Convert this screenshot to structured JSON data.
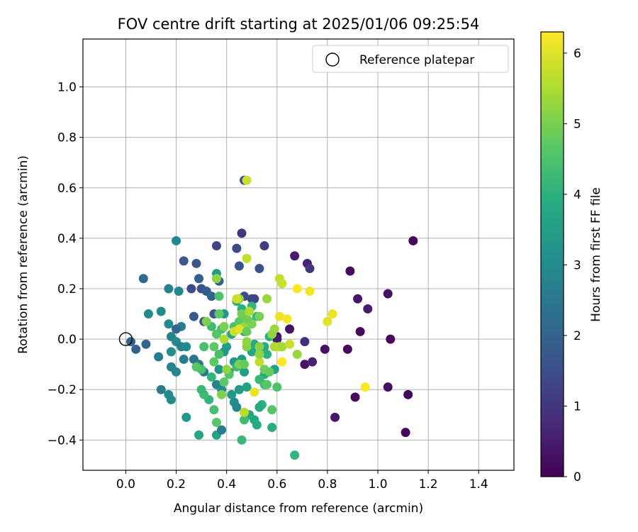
{
  "chart_data": {
    "type": "scatter",
    "title": "FOV centre drift starting at 2025/01/06 09:25:54",
    "xlabel": "Angular distance from reference (arcmin)",
    "ylabel": "Rotation from reference (arcmin)",
    "xlim": [
      -0.17,
      1.54
    ],
    "ylim": [
      -0.52,
      1.19
    ],
    "xticks": [
      0.0,
      0.2,
      0.4,
      0.6,
      0.8,
      1.0,
      1.2,
      1.4
    ],
    "xtick_labels": [
      "0.0",
      "0.2",
      "0.4",
      "0.6",
      "0.8",
      "1.0",
      "1.2",
      "1.4"
    ],
    "yticks": [
      -0.4,
      -0.2,
      0.0,
      0.2,
      0.4,
      0.6,
      0.8,
      1.0
    ],
    "ytick_labels": [
      "−0.4",
      "−0.2",
      "0.0",
      "0.2",
      "0.4",
      "0.6",
      "0.8",
      "1.0"
    ],
    "grid": true,
    "legend": {
      "position": "top-right",
      "label": "Reference platepar"
    },
    "reference_point": {
      "x": 0.0,
      "y": 0.0
    },
    "colorbar": {
      "label": "Hours from first FF file",
      "colormap": "viridis",
      "range": [
        0,
        6.3
      ],
      "ticks": [
        0,
        1,
        2,
        3,
        4,
        5,
        6
      ],
      "tick_labels": [
        "0",
        "1",
        "2",
        "3",
        "4",
        "5",
        "6"
      ]
    },
    "points": [
      {
        "x": 1.14,
        "y": 0.39,
        "c": 0.1
      },
      {
        "x": 0.89,
        "y": 0.27,
        "c": 0.2
      },
      {
        "x": 1.04,
        "y": 0.18,
        "c": 0.3
      },
      {
        "x": 0.92,
        "y": 0.16,
        "c": 0.4
      },
      {
        "x": 0.96,
        "y": 0.12,
        "c": 0.5
      },
      {
        "x": 0.93,
        "y": 0.03,
        "c": 0.2
      },
      {
        "x": 1.05,
        "y": 0.0,
        "c": 0.1
      },
      {
        "x": 0.79,
        "y": -0.04,
        "c": 0.3
      },
      {
        "x": 0.88,
        "y": -0.04,
        "c": 0.2
      },
      {
        "x": 1.04,
        "y": -0.19,
        "c": 0.3
      },
      {
        "x": 1.12,
        "y": -0.22,
        "c": 0.1
      },
      {
        "x": 0.91,
        "y": -0.23,
        "c": 0.2
      },
      {
        "x": 0.83,
        "y": -0.31,
        "c": 0.4
      },
      {
        "x": 1.11,
        "y": -0.37,
        "c": 0.1
      },
      {
        "x": 0.67,
        "y": 0.33,
        "c": 0.5
      },
      {
        "x": 0.72,
        "y": 0.3,
        "c": 0.6
      },
      {
        "x": 0.73,
        "y": 0.28,
        "c": 1.0
      },
      {
        "x": 0.65,
        "y": 0.04,
        "c": 0.3
      },
      {
        "x": 0.71,
        "y": -0.01,
        "c": 0.8
      },
      {
        "x": 0.71,
        "y": -0.1,
        "c": 0.4
      },
      {
        "x": 0.74,
        "y": -0.09,
        "c": 0.6
      },
      {
        "x": 0.6,
        "y": 0.01,
        "c": 0.2
      },
      {
        "x": 0.6,
        "y": 0.0,
        "c": 0.5
      },
      {
        "x": 0.47,
        "y": 0.63,
        "c": 1.6
      },
      {
        "x": 0.46,
        "y": 0.42,
        "c": 1.0
      },
      {
        "x": 0.55,
        "y": 0.37,
        "c": 1.1
      },
      {
        "x": 0.36,
        "y": 0.37,
        "c": 1.3
      },
      {
        "x": 0.44,
        "y": 0.36,
        "c": 1.4
      },
      {
        "x": 0.53,
        "y": 0.28,
        "c": 1.6
      },
      {
        "x": 0.45,
        "y": 0.29,
        "c": 1.6
      },
      {
        "x": 0.5,
        "y": 0.16,
        "c": 1.4
      },
      {
        "x": 0.47,
        "y": 0.17,
        "c": 1.5
      },
      {
        "x": 0.51,
        "y": 0.16,
        "c": 1.3
      },
      {
        "x": 0.23,
        "y": 0.31,
        "c": 1.8
      },
      {
        "x": 0.28,
        "y": 0.3,
        "c": 1.7
      },
      {
        "x": 0.07,
        "y": 0.24,
        "c": 2.2
      },
      {
        "x": 0.29,
        "y": 0.24,
        "c": 1.9
      },
      {
        "x": 0.37,
        "y": 0.23,
        "c": 1.9
      },
      {
        "x": 0.26,
        "y": 0.2,
        "c": 1.5
      },
      {
        "x": 0.3,
        "y": 0.2,
        "c": 1.6
      },
      {
        "x": 0.32,
        "y": 0.19,
        "c": 1.8
      },
      {
        "x": 0.34,
        "y": 0.17,
        "c": 2.0
      },
      {
        "x": 0.35,
        "y": 0.1,
        "c": 1.7
      },
      {
        "x": 0.27,
        "y": 0.09,
        "c": 1.8
      },
      {
        "x": 0.31,
        "y": 0.07,
        "c": 1.6
      },
      {
        "x": 0.02,
        "y": -0.01,
        "c": 2.0
      },
      {
        "x": 0.04,
        "y": -0.04,
        "c": 2.0
      },
      {
        "x": 0.08,
        "y": -0.02,
        "c": 2.1
      },
      {
        "x": 0.2,
        "y": 0.39,
        "c": 2.9
      },
      {
        "x": 0.17,
        "y": 0.2,
        "c": 2.8
      },
      {
        "x": 0.21,
        "y": 0.19,
        "c": 2.9
      },
      {
        "x": 0.09,
        "y": 0.1,
        "c": 3.0
      },
      {
        "x": 0.14,
        "y": 0.11,
        "c": 3.0
      },
      {
        "x": 0.22,
        "y": 0.05,
        "c": 2.7
      },
      {
        "x": 0.17,
        "y": 0.06,
        "c": 3.0
      },
      {
        "x": 0.2,
        "y": 0.04,
        "c": 2.1
      },
      {
        "x": 0.18,
        "y": 0.01,
        "c": 2.8
      },
      {
        "x": 0.2,
        "y": -0.01,
        "c": 3.0
      },
      {
        "x": 0.22,
        "y": -0.03,
        "c": 2.7
      },
      {
        "x": 0.24,
        "y": -0.03,
        "c": 3.0
      },
      {
        "x": 0.18,
        "y": -0.05,
        "c": 3.1
      },
      {
        "x": 0.13,
        "y": -0.07,
        "c": 2.6
      },
      {
        "x": 0.23,
        "y": -0.08,
        "c": 2.7
      },
      {
        "x": 0.27,
        "y": -0.08,
        "c": 2.4
      },
      {
        "x": 0.29,
        "y": -0.1,
        "c": 2.6
      },
      {
        "x": 0.18,
        "y": -0.11,
        "c": 2.8
      },
      {
        "x": 0.2,
        "y": -0.13,
        "c": 2.9
      },
      {
        "x": 0.31,
        "y": -0.13,
        "c": 2.5
      },
      {
        "x": 0.14,
        "y": -0.2,
        "c": 2.6
      },
      {
        "x": 0.17,
        "y": -0.22,
        "c": 3.0
      },
      {
        "x": 0.18,
        "y": -0.24,
        "c": 3.0
      },
      {
        "x": 0.24,
        "y": -0.31,
        "c": 3.3
      },
      {
        "x": 0.29,
        "y": -0.38,
        "c": 3.7
      },
      {
        "x": 0.36,
        "y": -0.38,
        "c": 3.6
      },
      {
        "x": 0.38,
        "y": -0.36,
        "c": 2.6
      },
      {
        "x": 0.36,
        "y": 0.26,
        "c": 3.4
      },
      {
        "x": 0.39,
        "y": 0.1,
        "c": 3.3
      },
      {
        "x": 0.42,
        "y": 0.02,
        "c": 3.6
      },
      {
        "x": 0.4,
        "y": -0.03,
        "c": 3.5
      },
      {
        "x": 0.39,
        "y": -0.05,
        "c": 3.4
      },
      {
        "x": 0.37,
        "y": -0.12,
        "c": 3.2
      },
      {
        "x": 0.41,
        "y": -0.13,
        "c": 3.2
      },
      {
        "x": 0.36,
        "y": -0.18,
        "c": 2.8
      },
      {
        "x": 0.38,
        "y": -0.2,
        "c": 3.0
      },
      {
        "x": 0.42,
        "y": -0.22,
        "c": 3.3
      },
      {
        "x": 0.43,
        "y": -0.25,
        "c": 3.1
      },
      {
        "x": 0.44,
        "y": -0.27,
        "c": 2.9
      },
      {
        "x": 0.45,
        "y": -0.2,
        "c": 3.4
      },
      {
        "x": 0.48,
        "y": -0.19,
        "c": 3.6
      },
      {
        "x": 0.47,
        "y": -0.13,
        "c": 3.5
      },
      {
        "x": 0.43,
        "y": -0.09,
        "c": 3.3
      },
      {
        "x": 0.46,
        "y": -0.08,
        "c": 3.4
      },
      {
        "x": 0.5,
        "y": -0.05,
        "c": 3.7
      },
      {
        "x": 0.51,
        "y": -0.02,
        "c": 3.8
      },
      {
        "x": 0.47,
        "y": 0.03,
        "c": 3.7
      },
      {
        "x": 0.49,
        "y": 0.07,
        "c": 4.3
      },
      {
        "x": 0.52,
        "y": 0.09,
        "c": 4.2
      },
      {
        "x": 0.46,
        "y": 0.12,
        "c": 4.0
      },
      {
        "x": 0.44,
        "y": 0.15,
        "c": 3.9
      },
      {
        "x": 0.5,
        "y": 0.13,
        "c": 4.1
      },
      {
        "x": 0.57,
        "y": 0.01,
        "c": 4.0
      },
      {
        "x": 0.55,
        "y": -0.03,
        "c": 3.8
      },
      {
        "x": 0.56,
        "y": -0.06,
        "c": 4.0
      },
      {
        "x": 0.59,
        "y": -0.12,
        "c": 3.6
      },
      {
        "x": 0.55,
        "y": -0.14,
        "c": 3.9
      },
      {
        "x": 0.53,
        "y": -0.16,
        "c": 4.2
      },
      {
        "x": 0.55,
        "y": -0.18,
        "c": 4.3
      },
      {
        "x": 0.6,
        "y": -0.19,
        "c": 4.5
      },
      {
        "x": 0.54,
        "y": -0.26,
        "c": 4.0
      },
      {
        "x": 0.53,
        "y": -0.27,
        "c": 3.8
      },
      {
        "x": 0.58,
        "y": -0.28,
        "c": 4.6
      },
      {
        "x": 0.49,
        "y": -0.3,
        "c": 3.6
      },
      {
        "x": 0.51,
        "y": -0.32,
        "c": 3.7
      },
      {
        "x": 0.47,
        "y": -0.32,
        "c": 4.3
      },
      {
        "x": 0.52,
        "y": -0.34,
        "c": 3.8
      },
      {
        "x": 0.58,
        "y": -0.35,
        "c": 3.9
      },
      {
        "x": 0.46,
        "y": -0.4,
        "c": 4.2
      },
      {
        "x": 0.67,
        "y": -0.46,
        "c": 4.1
      },
      {
        "x": 0.36,
        "y": -0.33,
        "c": 4.6
      },
      {
        "x": 0.35,
        "y": -0.28,
        "c": 4.4
      },
      {
        "x": 0.33,
        "y": -0.24,
        "c": 4.1
      },
      {
        "x": 0.31,
        "y": -0.22,
        "c": 4.3
      },
      {
        "x": 0.3,
        "y": -0.2,
        "c": 4.2
      },
      {
        "x": 0.34,
        "y": -0.15,
        "c": 4.1
      },
      {
        "x": 0.3,
        "y": -0.12,
        "c": 4.4
      },
      {
        "x": 0.28,
        "y": -0.11,
        "c": 4.6
      },
      {
        "x": 0.31,
        "y": -0.03,
        "c": 4.4
      },
      {
        "x": 0.35,
        "y": -0.03,
        "c": 4.7
      },
      {
        "x": 0.37,
        "y": -0.06,
        "c": 4.4
      },
      {
        "x": 0.35,
        "y": -0.09,
        "c": 4.7
      },
      {
        "x": 0.39,
        "y": -0.17,
        "c": 4.7
      },
      {
        "x": 0.38,
        "y": -0.22,
        "c": 5.0
      },
      {
        "x": 0.41,
        "y": -0.14,
        "c": 4.6
      },
      {
        "x": 0.4,
        "y": -0.12,
        "c": 5.2
      },
      {
        "x": 0.44,
        "y": -0.11,
        "c": 4.3
      },
      {
        "x": 0.45,
        "y": -0.1,
        "c": 5.0
      },
      {
        "x": 0.47,
        "y": -0.1,
        "c": 4.8
      },
      {
        "x": 0.36,
        "y": 0.02,
        "c": 4.6
      },
      {
        "x": 0.38,
        "y": 0.04,
        "c": 4.4
      },
      {
        "x": 0.37,
        "y": 0.1,
        "c": 4.7
      },
      {
        "x": 0.37,
        "y": 0.17,
        "c": 4.5
      },
      {
        "x": 0.36,
        "y": 0.24,
        "c": 5.2
      },
      {
        "x": 0.34,
        "y": 0.05,
        "c": 4.3
      },
      {
        "x": 0.32,
        "y": 0.07,
        "c": 5.0
      },
      {
        "x": 0.39,
        "y": 0.05,
        "c": 5.0
      },
      {
        "x": 0.39,
        "y": 0.0,
        "c": 5.5
      },
      {
        "x": 0.43,
        "y": 0.05,
        "c": 4.5
      },
      {
        "x": 0.45,
        "y": 0.07,
        "c": 4.7
      },
      {
        "x": 0.45,
        "y": 0.04,
        "c": 4.5
      },
      {
        "x": 0.47,
        "y": 0.05,
        "c": 5.3
      },
      {
        "x": 0.43,
        "y": 0.03,
        "c": 5.8
      },
      {
        "x": 0.45,
        "y": 0.04,
        "c": 6.0
      },
      {
        "x": 0.46,
        "y": 0.1,
        "c": 4.9
      },
      {
        "x": 0.45,
        "y": 0.16,
        "c": 5.3
      },
      {
        "x": 0.44,
        "y": 0.16,
        "c": 5.8
      },
      {
        "x": 0.48,
        "y": 0.08,
        "c": 4.9
      },
      {
        "x": 0.48,
        "y": 0.03,
        "c": 4.8
      },
      {
        "x": 0.48,
        "y": -0.03,
        "c": 5.1
      },
      {
        "x": 0.48,
        "y": -0.01,
        "c": 5.2
      },
      {
        "x": 0.49,
        "y": 0.11,
        "c": 5.5
      },
      {
        "x": 0.5,
        "y": 0.06,
        "c": 5.0
      },
      {
        "x": 0.48,
        "y": 0.32,
        "c": 5.7
      },
      {
        "x": 0.48,
        "y": 0.63,
        "c": 5.8
      },
      {
        "x": 0.51,
        "y": -0.21,
        "c": 6.1
      },
      {
        "x": 0.47,
        "y": -0.29,
        "c": 5.6
      },
      {
        "x": 0.53,
        "y": -0.09,
        "c": 5.7
      },
      {
        "x": 0.53,
        "y": -0.06,
        "c": 5.2
      },
      {
        "x": 0.53,
        "y": -0.03,
        "c": 5.1
      },
      {
        "x": 0.53,
        "y": 0.09,
        "c": 5.0
      },
      {
        "x": 0.56,
        "y": 0.16,
        "c": 5.3
      },
      {
        "x": 0.55,
        "y": -0.12,
        "c": 4.9
      },
      {
        "x": 0.56,
        "y": -0.18,
        "c": 4.6
      },
      {
        "x": 0.57,
        "y": -0.13,
        "c": 4.8
      },
      {
        "x": 0.58,
        "y": 0.02,
        "c": 5.2
      },
      {
        "x": 0.59,
        "y": 0.04,
        "c": 5.3
      },
      {
        "x": 0.59,
        "y": -0.03,
        "c": 5.5
      },
      {
        "x": 0.61,
        "y": 0.24,
        "c": 5.7
      },
      {
        "x": 0.62,
        "y": 0.22,
        "c": 5.8
      },
      {
        "x": 0.61,
        "y": 0.09,
        "c": 6.1
      },
      {
        "x": 0.64,
        "y": 0.08,
        "c": 6.2
      },
      {
        "x": 0.61,
        "y": -0.03,
        "c": 5.6
      },
      {
        "x": 0.62,
        "y": -0.03,
        "c": 5.4
      },
      {
        "x": 0.62,
        "y": -0.09,
        "c": 6.3
      },
      {
        "x": 0.65,
        "y": -0.02,
        "c": 5.8
      },
      {
        "x": 0.68,
        "y": -0.06,
        "c": 5.3
      },
      {
        "x": 0.68,
        "y": 0.2,
        "c": 6.3
      },
      {
        "x": 0.73,
        "y": 0.19,
        "c": 6.2
      },
      {
        "x": 0.8,
        "y": 0.07,
        "c": 6.0
      },
      {
        "x": 0.82,
        "y": 0.1,
        "c": 6.1
      },
      {
        "x": 0.95,
        "y": -0.19,
        "c": 6.3
      }
    ]
  }
}
